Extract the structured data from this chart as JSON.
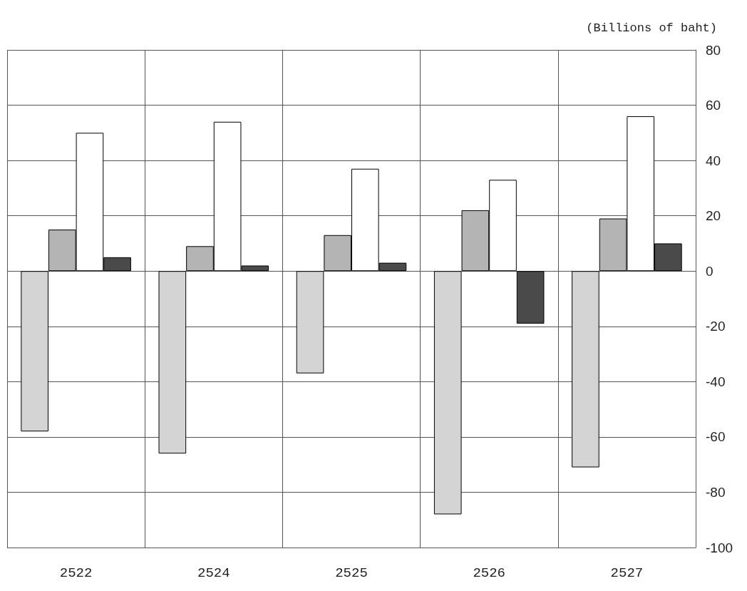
{
  "chart_data": {
    "type": "bar",
    "ylabel": "(Billions of baht)",
    "categories": [
      "2522",
      "2524",
      "2525",
      "2526",
      "2527"
    ],
    "series": [
      {
        "color": "#d4d4d4",
        "values": [
          -58,
          -66,
          -37,
          -88,
          -71
        ]
      },
      {
        "color": "#b4b4b4",
        "values": [
          15,
          9,
          13,
          22,
          19
        ]
      },
      {
        "color": "#ffffff",
        "values": [
          50,
          54,
          37,
          33,
          56
        ]
      },
      {
        "color": "#4a4a4a",
        "values": [
          5,
          2,
          3,
          -19,
          10
        ]
      }
    ],
    "ylim": [
      -100,
      80
    ],
    "yticks": [
      -100,
      -80,
      -60,
      -40,
      -20,
      0,
      20,
      40,
      60,
      80
    ],
    "grid": true
  }
}
